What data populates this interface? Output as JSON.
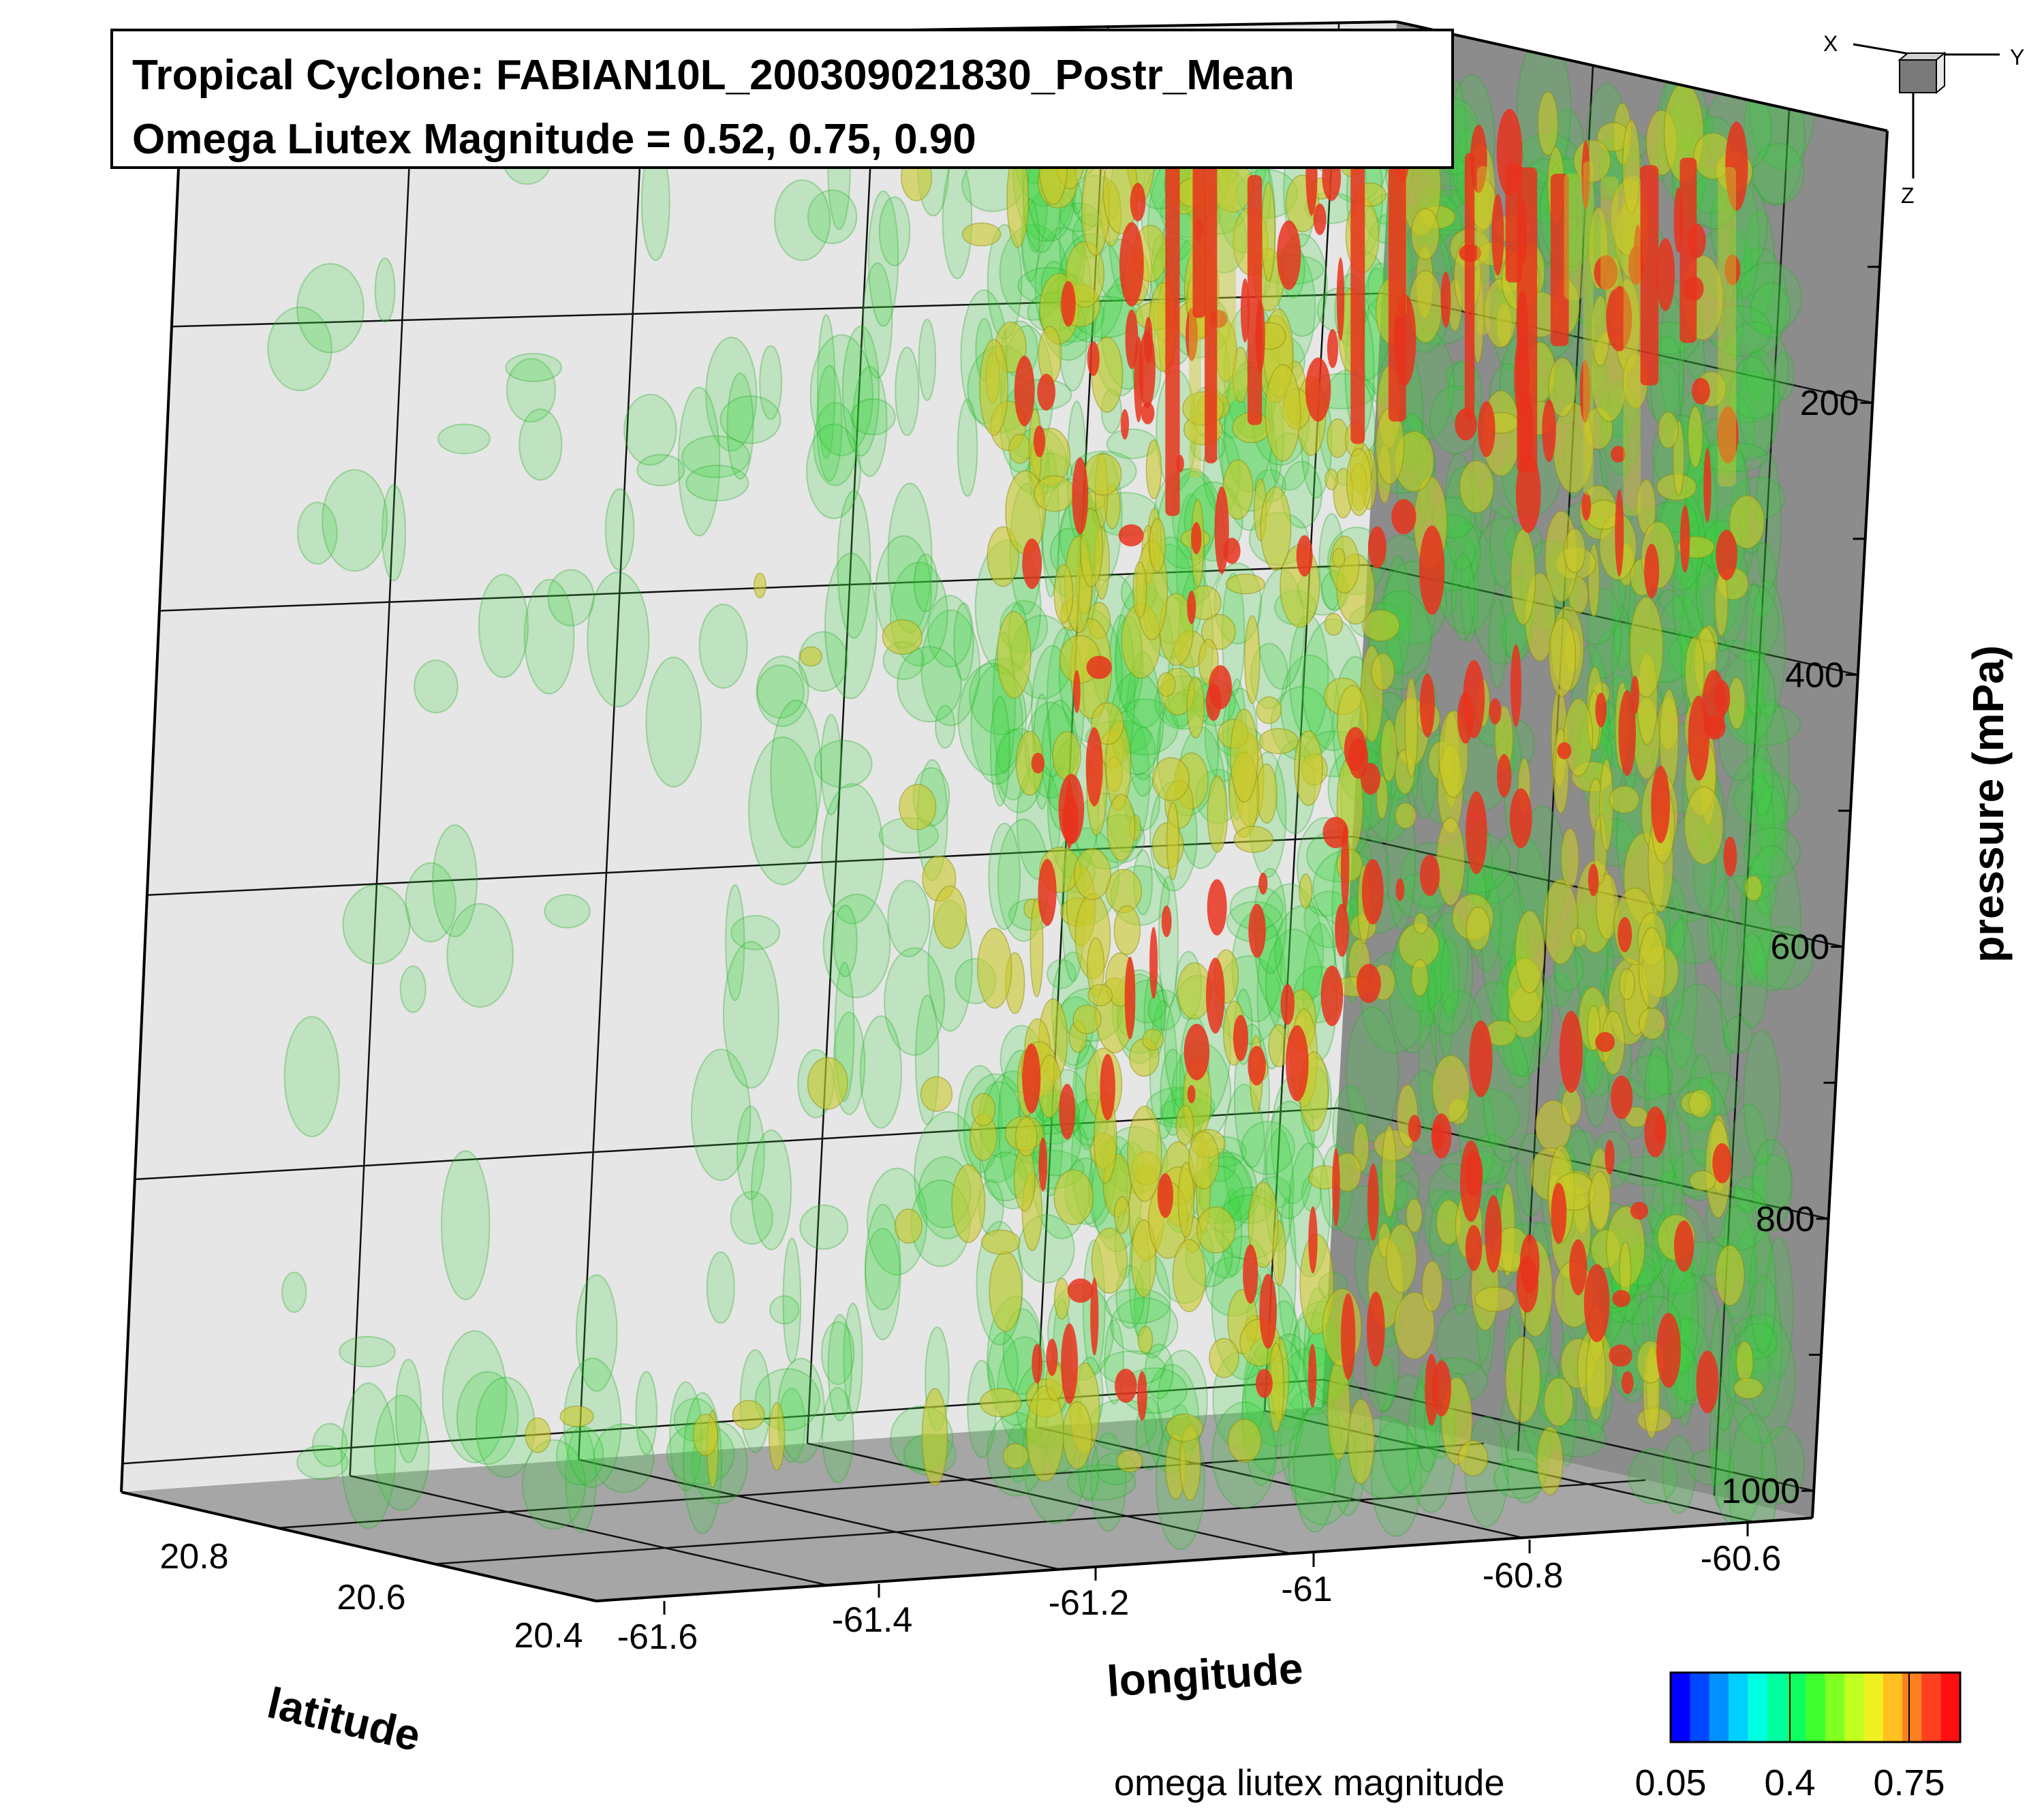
{
  "chart_data": {
    "type": "3d-isosurface",
    "title": "Tropical Cyclone: FABIAN10L_200309021830_Postr_Mean",
    "subtitle": "Omega Liutex Magnitude = 0.52, 0.75, 0.90",
    "isosurface_levels": [
      0.52,
      0.75,
      0.9
    ],
    "isosurface_colors": [
      "#35d83a",
      "#c9c92a",
      "#e8321c"
    ],
    "axes": {
      "latitude": {
        "label": "latitude",
        "ticks": [
          "20.8",
          "20.6",
          "20.4"
        ],
        "range": [
          20.4,
          20.9
        ]
      },
      "longitude": {
        "label": "longitude",
        "ticks": [
          "-61.6",
          "-61.4",
          "-61.2",
          "-61",
          "-60.8",
          "-60.6"
        ],
        "range": [
          -61.6,
          -60.55
        ]
      },
      "pressure": {
        "label": "pressure (mPa)",
        "ticks": [
          "200",
          "400",
          "600",
          "800",
          "1000"
        ],
        "range": [
          0,
          1020
        ],
        "reversed": true
      }
    },
    "orientation_axes": {
      "x": "X",
      "y": "Y",
      "z": "Z"
    },
    "colorbar": {
      "label": "omega liutex magnitude",
      "ticks": [
        "0.05",
        "0.4",
        "0.75"
      ],
      "min": 0.05,
      "max": 0.9,
      "colors": [
        "#0000ff",
        "#0048ff",
        "#0090ff",
        "#00d0ff",
        "#00ffe0",
        "#00ffa0",
        "#10ff60",
        "#40ff30",
        "#80ff20",
        "#c0ff20",
        "#f0f020",
        "#ffc020",
        "#ff8020",
        "#ff4020",
        "#ff1010"
      ]
    }
  },
  "colors": {
    "back_wall": "#e6e6e6",
    "side_wall": "#8c8c8c",
    "floor": "#9a9a9a",
    "grid_line": "#000000"
  }
}
